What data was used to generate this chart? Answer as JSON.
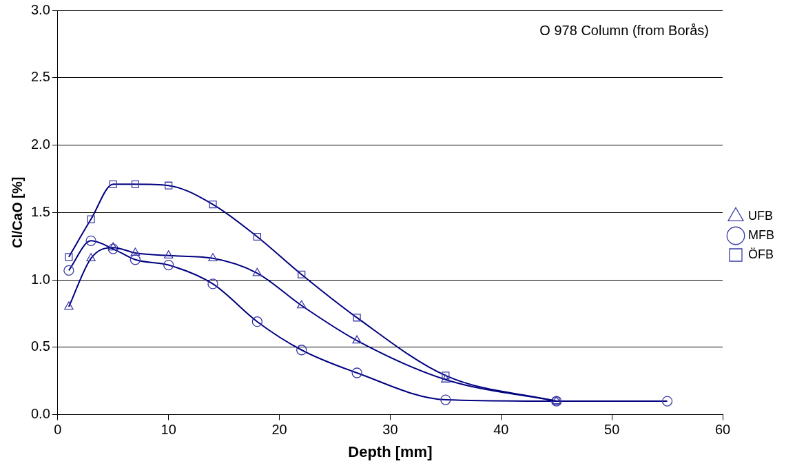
{
  "chart_data": {
    "type": "line",
    "xlabel": "Depth [mm]",
    "ylabel": "Cl/CaO [%]",
    "annotations": [
      "O 978 Column (from Borås)"
    ],
    "x": [
      1,
      3,
      5,
      7,
      10,
      14,
      18,
      22,
      27,
      35,
      45
    ],
    "xlim": [
      0,
      60
    ],
    "xticks": [
      0,
      10,
      20,
      30,
      40,
      50,
      60
    ],
    "ylim": [
      0,
      3
    ],
    "yticks": [
      {
        "value": 0,
        "label": "0.0"
      },
      {
        "value": 0.5,
        "label": "0.5"
      },
      {
        "value": 1,
        "label": "1.0"
      },
      {
        "value": 1.5,
        "label": "1.5"
      },
      {
        "value": 2,
        "label": "2.0"
      },
      {
        "value": 2.5,
        "label": "2.5"
      },
      {
        "value": 3,
        "label": "3.0"
      }
    ],
    "grid": "y",
    "legend": "right",
    "line_style": "solid",
    "series": [
      {
        "name": "UFB",
        "color": "#000080",
        "marker": "triangle",
        "values": [
          0.8,
          1.16,
          1.24,
          1.2,
          1.18,
          1.16,
          1.05,
          0.81,
          0.55,
          0.26,
          0.1
        ]
      },
      {
        "name": "MFB",
        "color": "#000080",
        "marker": "circle",
        "x": [
          1,
          3,
          5,
          7,
          10,
          14,
          18,
          22,
          27,
          35,
          45,
          55
        ],
        "values": [
          1.07,
          1.29,
          1.23,
          1.15,
          1.11,
          0.97,
          0.69,
          0.48,
          0.31,
          0.11,
          0.1,
          0.1
        ]
      },
      {
        "name": "ÖFB",
        "color": "#000080",
        "marker": "square",
        "values": [
          1.17,
          1.45,
          1.71,
          1.71,
          1.7,
          1.56,
          1.32,
          1.04,
          0.72,
          0.29,
          0.1
        ]
      }
    ]
  }
}
